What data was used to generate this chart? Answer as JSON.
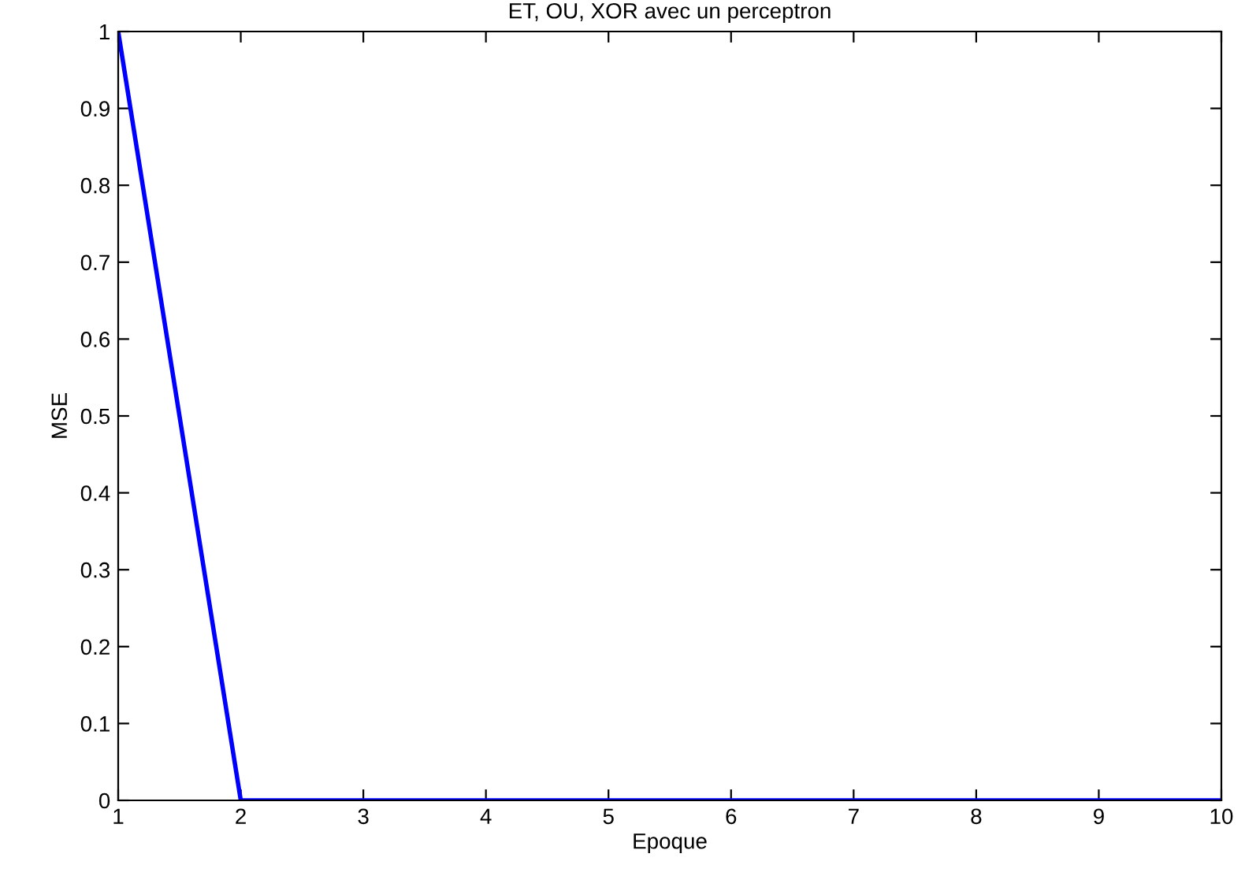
{
  "chart_data": {
    "type": "line",
    "title": "ET, OU, XOR avec un perceptron",
    "xlabel": "Epoque",
    "ylabel": "MSE",
    "x": [
      1,
      2,
      3,
      4,
      5,
      6,
      7,
      8,
      9,
      10
    ],
    "series": [
      {
        "color": "#0000ff",
        "values": [
          1,
          0,
          0,
          0,
          0,
          0,
          0,
          0,
          0,
          0
        ]
      }
    ],
    "xlim": [
      1,
      10
    ],
    "xticks": [
      1,
      2,
      3,
      4,
      5,
      6,
      7,
      8,
      9,
      10
    ],
    "ylim": [
      0,
      1
    ],
    "yticks": [
      0,
      0.1,
      0.2,
      0.3,
      0.4,
      0.5,
      0.6,
      0.7,
      0.8,
      0.9,
      1
    ],
    "grid": false,
    "marker": "none",
    "line_style": "solid"
  }
}
